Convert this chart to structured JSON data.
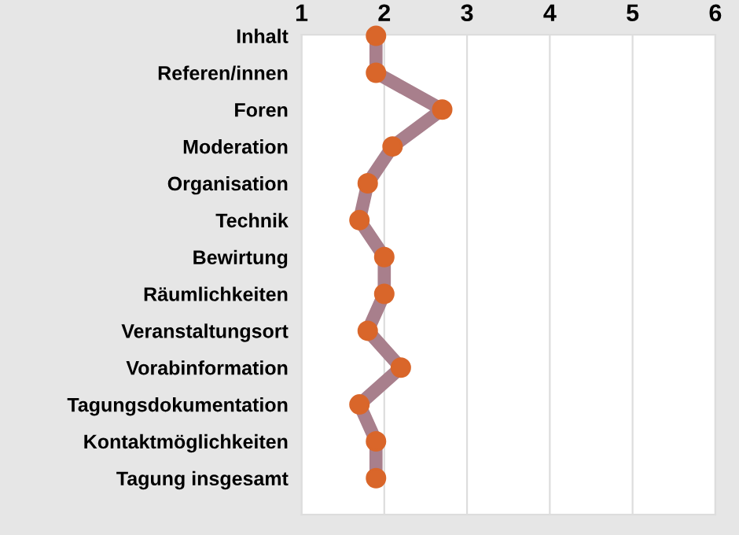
{
  "chart_data": {
    "type": "line",
    "orientation": "horizontal",
    "categories": [
      "Inhalt",
      "Referen/innen",
      "Foren",
      "Moderation",
      "Organisation",
      "Technik",
      "Bewirtung",
      "Räumlichkeiten",
      "Veranstaltungsort",
      "Vorabinformation",
      "Tagungsdokumentation",
      "Kontaktmöglichkeiten",
      "Tagung insgesamt"
    ],
    "series": [
      {
        "color": "#a87f8c",
        "colors": [
          "#d9662a",
          "#d9662a",
          "#d9662a",
          "#d9662a",
          "#d9662a",
          "#d9662a",
          "#d9662a",
          "#d9662a",
          "#d9662a",
          "#d9662a",
          "#d9662a",
          "#d9662a",
          "#d9662a"
        ],
        "values": [
          1.9,
          1.9,
          2.7,
          2.1,
          1.8,
          1.7,
          2.0,
          2.0,
          1.8,
          2.2,
          1.7,
          1.9,
          1.9
        ]
      }
    ],
    "xlim": [
      1,
      6
    ],
    "xticks": [
      1,
      2,
      3,
      4,
      5,
      6
    ],
    "grid": "x",
    "marker": "circle",
    "legend": false
  }
}
